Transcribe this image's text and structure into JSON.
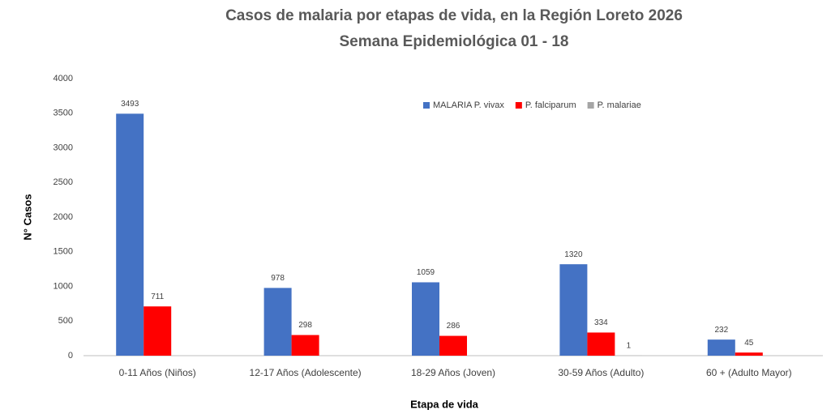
{
  "chart_data": {
    "type": "bar",
    "title": "Casos de malaria por etapas de vida, en la Región Loreto 2026",
    "subtitle": "Semana Epidemiológica 01 - 18",
    "x_label": "Etapa de vida",
    "y_label": "N° Casos",
    "categories": [
      "0-11 Años (Niños)",
      "12-17 Años (Adolescente)",
      "18-29 Años (Joven)",
      "30-59 Años (Adulto)",
      "60 + (Adulto Mayor)"
    ],
    "series": [
      {
        "name": "MALARIA P. vivax",
        "color": "#4472c4",
        "values": [
          3493,
          978,
          1059,
          1320,
          232
        ]
      },
      {
        "name": "P. falciparum",
        "color": "#ff0000",
        "values": [
          711,
          298,
          286,
          334,
          45
        ]
      },
      {
        "name": "P. malariae",
        "color": "#a5a5a5",
        "values": [
          null,
          null,
          null,
          1,
          null
        ]
      }
    ],
    "ylim": [
      0,
      4000
    ],
    "yticks": [
      0,
      500,
      1000,
      1500,
      2000,
      2500,
      3000,
      3500,
      4000
    ],
    "grid": false,
    "legend": "top-right"
  }
}
